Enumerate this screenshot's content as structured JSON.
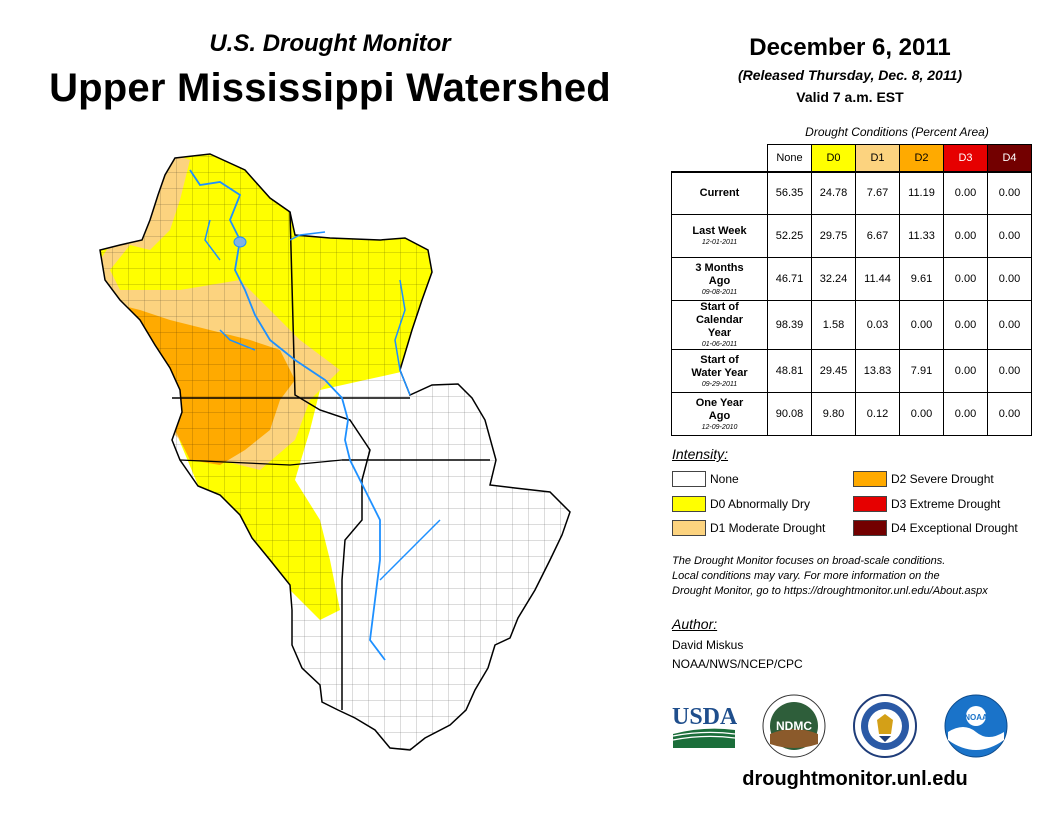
{
  "header": {
    "subtitle": "U.S. Drought Monitor",
    "title": "Upper Mississippi Watershed"
  },
  "release": {
    "date": "December 6, 2011",
    "released": "(Released Thursday, Dec. 8, 2011)",
    "valid": "Valid 7 a.m. EST"
  },
  "table": {
    "caption": "Drought Conditions (Percent Area)",
    "columns": [
      "None",
      "D0",
      "D1",
      "D2",
      "D3",
      "D4"
    ],
    "column_colors": [
      "#ffffff",
      "#ffff00",
      "#fcd37f",
      "#ffaa00",
      "#e60000",
      "#730000"
    ],
    "column_text_colors": [
      "#000000",
      "#000000",
      "#000000",
      "#000000",
      "#ffffff",
      "#ffffff"
    ],
    "rows": [
      {
        "label": "Current",
        "sub": "",
        "values": [
          "56.35",
          "24.78",
          "7.67",
          "11.19",
          "0.00",
          "0.00"
        ]
      },
      {
        "label": "Last Week",
        "sub": "12-01-2011",
        "values": [
          "52.25",
          "29.75",
          "6.67",
          "11.33",
          "0.00",
          "0.00"
        ]
      },
      {
        "label": "3 Months Ago",
        "sub": "09-08-2011",
        "values": [
          "46.71",
          "32.24",
          "11.44",
          "9.61",
          "0.00",
          "0.00"
        ]
      },
      {
        "label": "Start of Calendar Year",
        "sub": "01-06-2011",
        "values": [
          "98.39",
          "1.58",
          "0.03",
          "0.00",
          "0.00",
          "0.00"
        ]
      },
      {
        "label": "Start of Water Year",
        "sub": "09-29-2011",
        "values": [
          "48.81",
          "29.45",
          "13.83",
          "7.91",
          "0.00",
          "0.00"
        ]
      },
      {
        "label": "One Year Ago",
        "sub": "12-09-2010",
        "values": [
          "90.08",
          "9.80",
          "0.12",
          "0.00",
          "0.00",
          "0.00"
        ]
      }
    ]
  },
  "legend": {
    "title": "Intensity:",
    "items": [
      {
        "label": "None",
        "color": "#ffffff"
      },
      {
        "label": "D0 Abnormally Dry",
        "color": "#ffff00"
      },
      {
        "label": "D1 Moderate Drought",
        "color": "#fcd37f"
      },
      {
        "label": "D2 Severe Drought",
        "color": "#ffaa00"
      },
      {
        "label": "D3 Extreme Drought",
        "color": "#e60000"
      },
      {
        "label": "D4 Exceptional Drought",
        "color": "#730000"
      }
    ]
  },
  "note": {
    "line1": "The Drought Monitor focuses on broad-scale conditions.",
    "line2": "Local conditions may vary. For more information on the",
    "line3": "Drought Monitor, go to https://droughtmonitor.unl.edu/About.aspx"
  },
  "author": {
    "title": "Author:",
    "name": "David Miskus",
    "org": "NOAA/NWS/NCEP/CPC"
  },
  "logos": {
    "usda": "USDA",
    "ndmc": "NDMC",
    "noaa": "NOAA"
  },
  "url": "droughtmonitor.unl.edu"
}
